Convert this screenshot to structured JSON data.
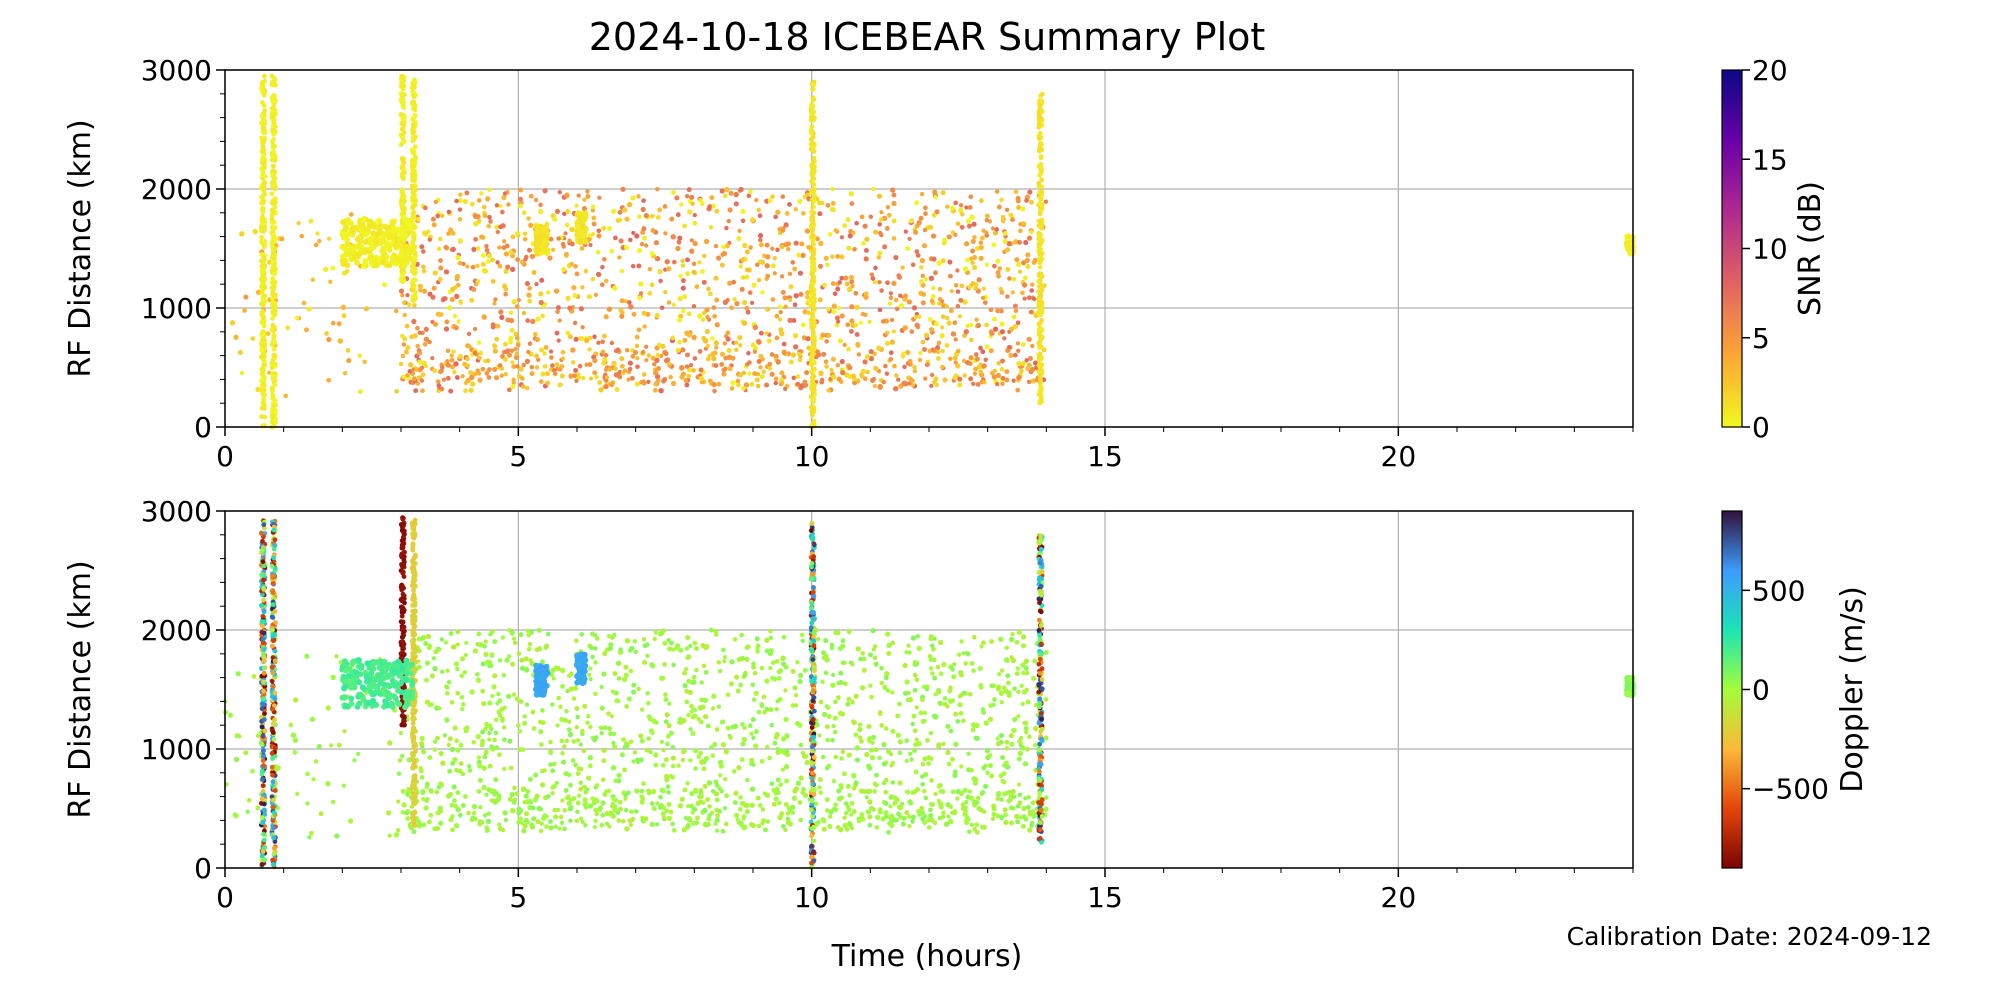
{
  "title": "2024-10-18 ICEBEAR Summary Plot",
  "footer": {
    "calibration": "Calibration Date: 2024-09-12"
  },
  "colors": {
    "grid": "#b0b0b0",
    "snr_colormap": [
      "#f0f921",
      "#fca636",
      "#e16462",
      "#b12a90",
      "#6a00a8",
      "#0d0887"
    ],
    "doppler_colormap": [
      "#7a0403",
      "#e4460a",
      "#fbb938",
      "#a4fc3c",
      "#1ae4b6",
      "#3e9bfe",
      "#30123b"
    ]
  },
  "chart_data": [
    {
      "type": "scatter",
      "panel": "snr",
      "title": "",
      "xlabel": "",
      "ylabel": "RF Distance (km)",
      "xlim": [
        0,
        24
      ],
      "ylim": [
        0,
        3000
      ],
      "xticks": [
        "0",
        "5",
        "10",
        "15",
        "20"
      ],
      "yticks": [
        "0",
        "1000",
        "2000",
        "3000"
      ],
      "grid": true,
      "colorbar": {
        "label": "SNR (dB)",
        "range": [
          0,
          20
        ],
        "ticks": [
          "0",
          "5",
          "10",
          "15",
          "20"
        ]
      },
      "features": [
        {
          "kind": "vertical",
          "t": 0.65,
          "r": [
            0,
            2950
          ],
          "c": 0.5
        },
        {
          "kind": "vertical",
          "t": 0.83,
          "r": [
            0,
            2950
          ],
          "c": 0.5
        },
        {
          "kind": "vertical",
          "t": 3.03,
          "r": [
            1200,
            2950
          ],
          "c": 0.5
        },
        {
          "kind": "vertical",
          "t": 3.22,
          "r": [
            1050,
            2950
          ],
          "c": 0.5
        },
        {
          "kind": "vertical",
          "t": 10.02,
          "r": [
            0,
            2900
          ],
          "c": 1.0
        },
        {
          "kind": "vertical",
          "t": 13.9,
          "r": [
            200,
            2800
          ],
          "c": 1.0
        },
        {
          "kind": "blob",
          "t": [
            2.0,
            3.2
          ],
          "r": [
            1350,
            1750
          ],
          "c": 0.5
        },
        {
          "kind": "blob",
          "t": [
            5.3,
            5.5
          ],
          "r": [
            1450,
            1700
          ],
          "c": 1.0
        },
        {
          "kind": "blob",
          "t": [
            6.0,
            6.15
          ],
          "r": [
            1550,
            1800
          ],
          "c": 1.0
        },
        {
          "kind": "blob",
          "t": [
            23.9,
            24.0
          ],
          "r": [
            1450,
            1600
          ],
          "c": 0.5
        }
      ],
      "scatter_ranges": [
        {
          "t": [
            0,
            3
          ],
          "r": [
            250,
            1800
          ],
          "n": 70,
          "c": [
            0,
            5
          ]
        },
        {
          "t": [
            3,
            14
          ],
          "r": [
            300,
            2000
          ],
          "n": 1400,
          "c": [
            0,
            8
          ]
        },
        {
          "t": [
            3,
            14
          ],
          "r": [
            350,
            650
          ],
          "n": 300,
          "c": [
            1,
            7
          ]
        }
      ]
    },
    {
      "type": "scatter",
      "panel": "doppler",
      "title": "",
      "xlabel": "Time (hours)",
      "ylabel": "RF Distance (km)",
      "xlim": [
        0,
        24
      ],
      "ylim": [
        0,
        3000
      ],
      "xticks": [
        "0",
        "5",
        "10",
        "15",
        "20"
      ],
      "yticks": [
        "0",
        "1000",
        "2000",
        "3000"
      ],
      "grid": true,
      "colorbar": {
        "label": "Doppler (m/s)",
        "range": [
          -900,
          900
        ],
        "ticks": [
          "−500",
          "0",
          "500"
        ]
      },
      "features": [
        {
          "kind": "vertical-mixed",
          "t": 0.65,
          "r": [
            0,
            2950
          ]
        },
        {
          "kind": "vertical-mixed",
          "t": 0.83,
          "r": [
            0,
            2950
          ]
        },
        {
          "kind": "vertical",
          "t": 3.03,
          "r": [
            1200,
            2950
          ],
          "c": -850
        },
        {
          "kind": "vertical",
          "t": 3.22,
          "r": [
            350,
            2950
          ],
          "c": -200
        },
        {
          "kind": "vertical-mixed",
          "t": 10.02,
          "r": [
            0,
            2900
          ]
        },
        {
          "kind": "vertical-mixed",
          "t": 13.9,
          "r": [
            200,
            2800
          ]
        },
        {
          "kind": "blob",
          "t": [
            2.0,
            3.2
          ],
          "r": [
            1350,
            1750
          ],
          "c": 200
        },
        {
          "kind": "blob",
          "t": [
            5.3,
            5.5
          ],
          "r": [
            1450,
            1700
          ],
          "c": 550
        },
        {
          "kind": "blob",
          "t": [
            6.0,
            6.15
          ],
          "r": [
            1550,
            1800
          ],
          "c": 550
        },
        {
          "kind": "blob",
          "t": [
            23.9,
            24.0
          ],
          "r": [
            1450,
            1600
          ],
          "c": 50
        }
      ],
      "scatter_ranges": [
        {
          "t": [
            0,
            3
          ],
          "r": [
            250,
            1800
          ],
          "n": 70,
          "c": [
            -60,
            60
          ]
        },
        {
          "t": [
            3,
            14
          ],
          "r": [
            300,
            2000
          ],
          "n": 1400,
          "c": [
            -70,
            70
          ]
        },
        {
          "t": [
            3,
            14
          ],
          "r": [
            350,
            650
          ],
          "n": 300,
          "c": [
            -70,
            70
          ]
        }
      ]
    }
  ]
}
